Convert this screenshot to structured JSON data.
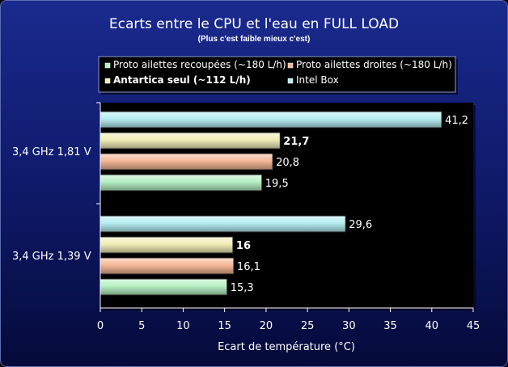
{
  "colors": {
    "background_top": "#1a2a8e",
    "background_bottom": "#050a3a",
    "plot_area": "#000000",
    "series_1": "#b6f0c4",
    "series_2": "#f4b896",
    "series_3": "#f2eeb8",
    "series_4": "#b6eef2"
  },
  "chart_data": {
    "type": "bar",
    "orientation": "horizontal",
    "title": "Ecarts entre le CPU et l'eau en FULL LOAD",
    "subtitle": "(Plus c'est faible mieux c'est)",
    "xlabel": "Ecart de température (°C)",
    "ylabel": "",
    "xlim": [
      0,
      45
    ],
    "xticks": [
      "0",
      "5",
      "10",
      "15",
      "20",
      "25",
      "30",
      "35",
      "40",
      "45"
    ],
    "grid": false,
    "legend_position": "top",
    "categories": [
      "3,4 GHz 1,81 V",
      "3,4 GHz 1,39 V"
    ],
    "series": [
      {
        "name": "Proto ailettes recoupées (~180 L/h)",
        "values": [
          19.5,
          15.3
        ],
        "labels": [
          "19,5",
          "15,3"
        ],
        "color": "#b6f0c4",
        "bold": false
      },
      {
        "name": "Proto ailettes droites (~180 L/h)",
        "values": [
          20.8,
          16.1
        ],
        "labels": [
          "20,8",
          "16,1"
        ],
        "color": "#f4b896",
        "bold": false
      },
      {
        "name": "Antartica seul (~112 L/h)",
        "values": [
          21.7,
          16
        ],
        "labels": [
          "21,7",
          "16"
        ],
        "color": "#f2eeb8",
        "bold": true
      },
      {
        "name": "Intel Box",
        "values": [
          41.2,
          29.6
        ],
        "labels": [
          "41,2",
          "29,6"
        ],
        "color": "#b6eef2",
        "bold": false
      }
    ]
  }
}
